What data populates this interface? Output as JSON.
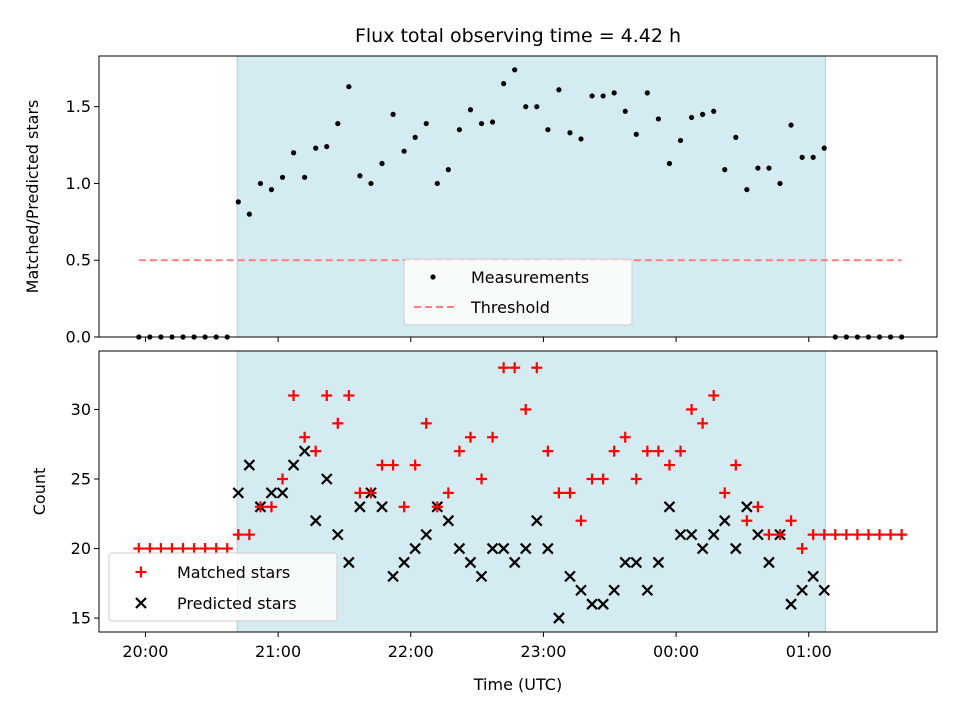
{
  "chart_data": [
    {
      "type": "scatter",
      "title": "Flux total observing time = 4.42 h",
      "ylabel": "Matched/Predicted stars",
      "xlabel": "",
      "ylim": [
        0,
        1.83
      ],
      "yticks": [
        "0.0",
        "0.5",
        "1.0",
        "1.5"
      ],
      "ytick_values": [
        0,
        0.5,
        1.0,
        1.5
      ],
      "xticks": [
        "20:00",
        "21:00",
        "22:00",
        "23:00",
        "00:00",
        "01:00"
      ],
      "x_unit": "minutes after 20:00 (UTC)",
      "xlim": [
        -21,
        358
      ],
      "shaded_region": [
        41.5,
        307.5
      ],
      "shade_color": "#d4ebf1",
      "legend_position": "lower center",
      "series": [
        {
          "name": "Measurements",
          "color": "#000000",
          "marker": "dot",
          "x": [
            -3,
            2,
            7,
            12,
            17,
            22,
            27,
            32,
            37,
            42,
            47,
            52,
            57,
            62,
            67,
            72,
            77,
            82,
            87,
            92,
            97,
            102,
            107,
            112,
            117,
            122,
            127,
            132,
            137,
            142,
            147,
            152,
            157,
            162,
            167,
            172,
            177,
            182,
            187,
            192,
            197,
            202,
            207,
            212,
            217,
            222,
            227,
            232,
            237,
            242,
            247,
            252,
            257,
            262,
            267,
            272,
            277,
            282,
            287,
            292,
            297,
            302,
            307,
            312,
            317,
            322,
            327,
            332,
            337,
            342
          ],
          "values": [
            0,
            0,
            0,
            0,
            0,
            0,
            0,
            0,
            0,
            0.88,
            0.8,
            1.0,
            0.96,
            1.04,
            1.2,
            1.04,
            1.23,
            1.24,
            1.39,
            1.63,
            1.05,
            1.0,
            1.13,
            1.45,
            1.21,
            1.3,
            1.39,
            1.0,
            1.09,
            1.35,
            1.48,
            1.39,
            1.4,
            1.65,
            1.74,
            1.5,
            1.5,
            1.35,
            1.61,
            1.33,
            1.29,
            1.57,
            1.57,
            1.59,
            1.47,
            1.32,
            1.59,
            1.42,
            1.13,
            1.28,
            1.43,
            1.45,
            1.47,
            1.09,
            1.3,
            0.96,
            1.1,
            1.1,
            1.0,
            1.38,
            1.17,
            1.17,
            1.23,
            0,
            0,
            0,
            0,
            0,
            0,
            0
          ]
        },
        {
          "name": "Threshold",
          "color": "#ff7f7f",
          "style": "dashed",
          "x": [
            -3,
            342
          ],
          "values": [
            0.5,
            0.5
          ]
        }
      ]
    },
    {
      "type": "scatter",
      "title": "",
      "ylabel": "Count",
      "xlabel": "Time (UTC)",
      "ylim": [
        14,
        34.2
      ],
      "yticks": [
        "15",
        "20",
        "25",
        "30"
      ],
      "ytick_values": [
        15,
        20,
        25,
        30
      ],
      "xticks": [
        "20:00",
        "21:00",
        "22:00",
        "23:00",
        "00:00",
        "01:00"
      ],
      "x_unit": "minutes after 20:00 (UTC)",
      "xlim": [
        -21,
        358
      ],
      "shaded_region": [
        41.5,
        307.5
      ],
      "shade_color": "#d4ebf1",
      "legend_position": "lower left",
      "x": [
        -3,
        2,
        7,
        12,
        17,
        22,
        27,
        32,
        37,
        42,
        47,
        52,
        57,
        62,
        67,
        72,
        77,
        82,
        87,
        92,
        97,
        102,
        107,
        112,
        117,
        122,
        127,
        132,
        137,
        142,
        147,
        152,
        157,
        162,
        167,
        172,
        177,
        182,
        187,
        192,
        197,
        202,
        207,
        212,
        217,
        222,
        227,
        232,
        237,
        242,
        247,
        252,
        257,
        262,
        267,
        272,
        277,
        282,
        287,
        292,
        297,
        302,
        307,
        312,
        317,
        322,
        327,
        332,
        337,
        342
      ],
      "series": [
        {
          "name": "Matched stars",
          "color": "#ff0000",
          "marker": "plus",
          "values": [
            20,
            20,
            20,
            20,
            20,
            20,
            20,
            20,
            20,
            21,
            21,
            23,
            23,
            25,
            31,
            28,
            27,
            31,
            29,
            31,
            24,
            24,
            26,
            26,
            23,
            26,
            29,
            23,
            24,
            27,
            28,
            25,
            28,
            33,
            33,
            30,
            33,
            27,
            24,
            24,
            22,
            25,
            25,
            27,
            28,
            25,
            27,
            27,
            26,
            27,
            30,
            29,
            31,
            24,
            26,
            22,
            23,
            21,
            21,
            22,
            20,
            21,
            21,
            21,
            21,
            21,
            21,
            21,
            21,
            21
          ]
        },
        {
          "name": "Predicted stars",
          "color": "#000000",
          "marker": "x",
          "values": [
            null,
            null,
            null,
            null,
            null,
            null,
            null,
            null,
            null,
            24,
            26,
            23,
            24,
            24,
            26,
            27,
            22,
            25,
            21,
            19,
            23,
            24,
            23,
            18,
            19,
            20,
            21,
            23,
            22,
            20,
            19,
            18,
            20,
            20,
            19,
            20,
            22,
            20,
            15,
            18,
            17,
            16,
            16,
            17,
            19,
            19,
            17,
            19,
            23,
            21,
            21,
            20,
            21,
            22,
            20,
            23,
            21,
            19,
            21,
            16,
            17,
            18,
            17,
            null,
            null,
            null,
            null,
            null,
            null,
            null
          ]
        }
      ]
    }
  ]
}
